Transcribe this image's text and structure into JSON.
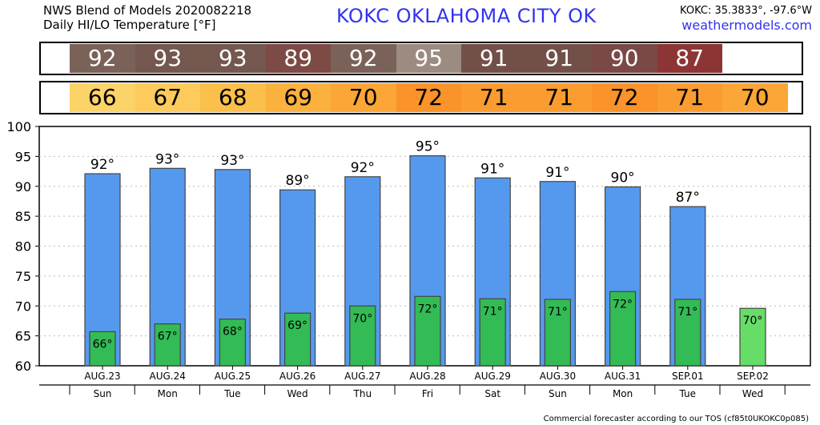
{
  "header": {
    "title_line1": "NWS Blend of Models 2020082218",
    "title_line2": "Daily HI/LO Temperature [°F]",
    "station": "KOKC   OKLAHOMA CITY   OK",
    "coords": "KOKC: 35.3833°, -97.6°W",
    "site": "weathermodels.com"
  },
  "footer": "Commercial forecaster according to our TOS (cf85t0UKOKC0p085)",
  "strips": {
    "hi": [
      {
        "value": "92",
        "color": "#7a6259"
      },
      {
        "value": "93",
        "color": "#74584f"
      },
      {
        "value": "93",
        "color": "#74584f"
      },
      {
        "value": "89",
        "color": "#7d4a45"
      },
      {
        "value": "92",
        "color": "#7a6259"
      },
      {
        "value": "95",
        "color": "#9c8b80"
      },
      {
        "value": "91",
        "color": "#725048"
      },
      {
        "value": "91",
        "color": "#725048"
      },
      {
        "value": "90",
        "color": "#7a4946"
      },
      {
        "value": "87",
        "color": "#8d3534"
      },
      {
        "value": "",
        "color": "#ffffff"
      }
    ],
    "lo": [
      {
        "value": "66",
        "color": "#fcd368"
      },
      {
        "value": "67",
        "color": "#fccb5c"
      },
      {
        "value": "68",
        "color": "#fbbf4c"
      },
      {
        "value": "69",
        "color": "#fbb13e"
      },
      {
        "value": "70",
        "color": "#fba636"
      },
      {
        "value": "72",
        "color": "#f9932a"
      },
      {
        "value": "71",
        "color": "#fa9c2f"
      },
      {
        "value": "71",
        "color": "#fa9c2f"
      },
      {
        "value": "72",
        "color": "#f9932a"
      },
      {
        "value": "71",
        "color": "#fa9c2f"
      },
      {
        "value": "70",
        "color": "#fba636"
      }
    ]
  },
  "chart_data": {
    "type": "bar",
    "categories": [
      "AUG.23",
      "AUG.24",
      "AUG.25",
      "AUG.26",
      "AUG.27",
      "AUG.28",
      "AUG.29",
      "AUG.30",
      "AUG.31",
      "SEP.01",
      "SEP.02"
    ],
    "weekdays": [
      "Sun",
      "Mon",
      "Tue",
      "Wed",
      "Thu",
      "Fri",
      "Sat",
      "Sun",
      "Mon",
      "Tue",
      "Wed"
    ],
    "series": [
      {
        "values": [
          92.1,
          93.0,
          92.8,
          89.4,
          91.6,
          95.1,
          91.4,
          90.8,
          89.9,
          86.6,
          null
        ],
        "labels": [
          "92°",
          "93°",
          "93°",
          "89°",
          "92°",
          "95°",
          "91°",
          "91°",
          "90°",
          "87°",
          ""
        ],
        "color": "#5599ee"
      },
      {
        "values": [
          65.7,
          67.0,
          67.8,
          68.8,
          70.0,
          71.6,
          71.2,
          71.1,
          72.4,
          71.1,
          69.6
        ],
        "labels": [
          "66°",
          "67°",
          "68°",
          "69°",
          "70°",
          "72°",
          "71°",
          "71°",
          "72°",
          "71°",
          "70°"
        ],
        "color": "#33bb55",
        "last_color": "#66dd66"
      }
    ],
    "ylim": [
      60,
      100
    ],
    "yticks": [
      60,
      65,
      70,
      75,
      80,
      85,
      90,
      95,
      100
    ],
    "grid": true,
    "grid_color": "#bbbbbb"
  }
}
